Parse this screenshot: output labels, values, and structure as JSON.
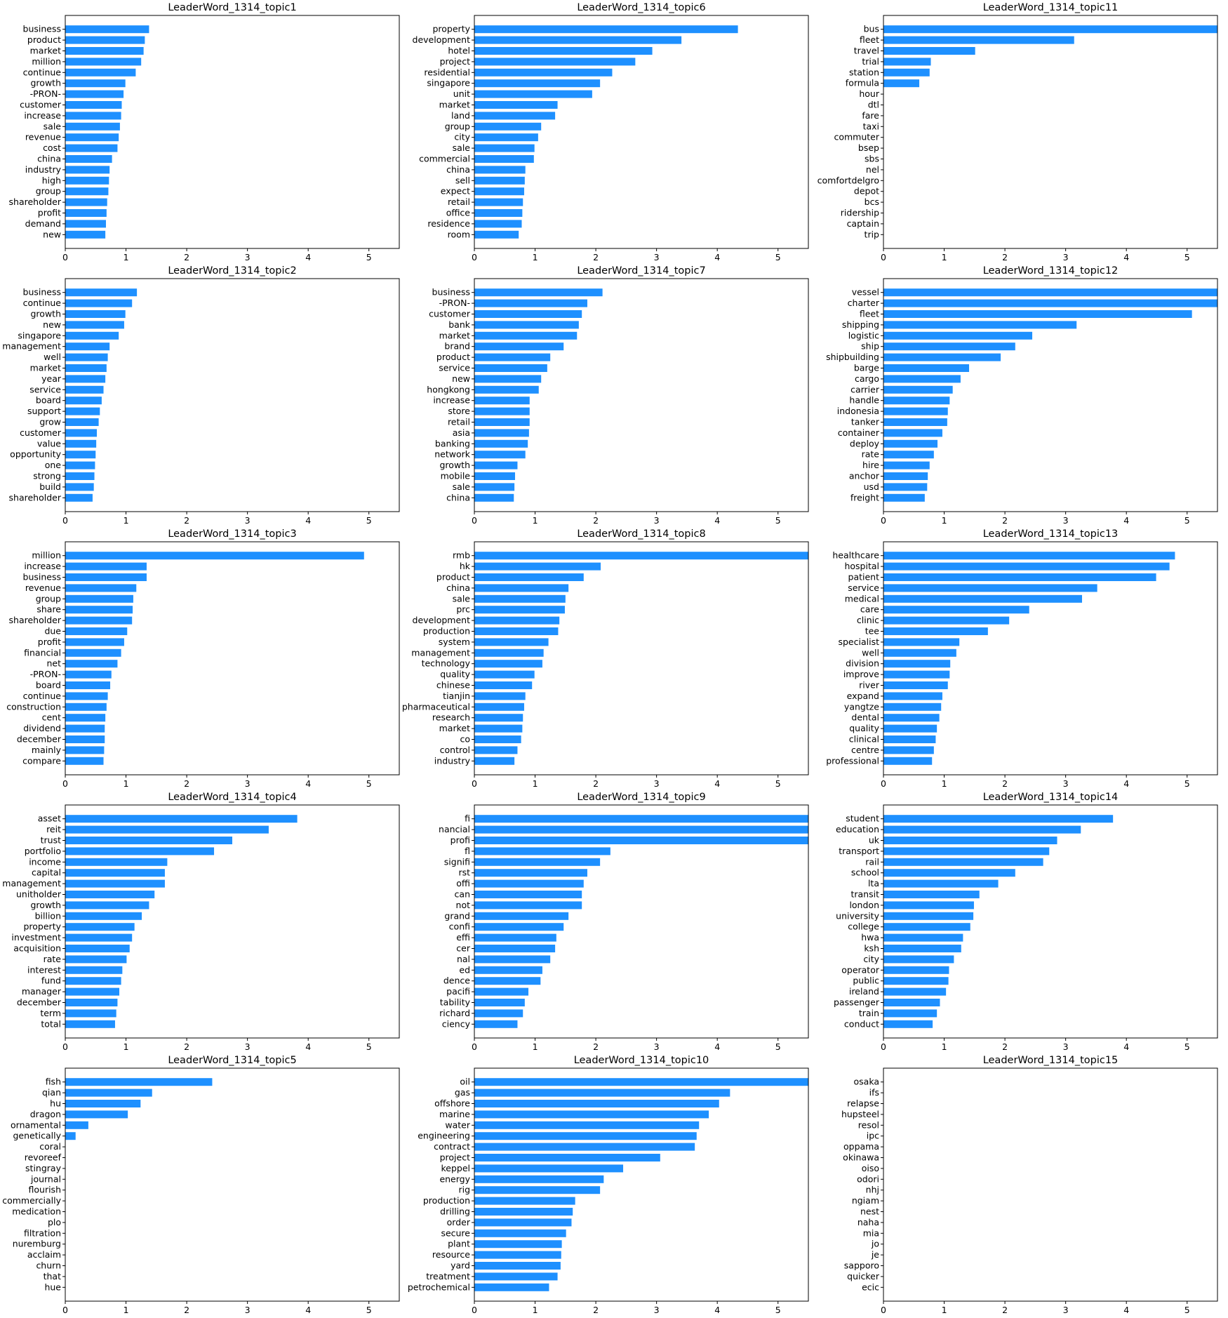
{
  "chart_data": [
    {
      "type": "bar",
      "orientation": "horizontal",
      "title": "LeaderWord_1314_topic1",
      "categories": [
        "business",
        "product",
        "market",
        "million",
        "continue",
        "growth",
        "-PRON-",
        "customer",
        "increase",
        "sale",
        "revenue",
        "cost",
        "china",
        "industry",
        "high",
        "group",
        "shareholder",
        "profit",
        "demand",
        "new"
      ],
      "values": [
        1.38,
        1.31,
        1.29,
        1.25,
        1.16,
        0.99,
        0.96,
        0.93,
        0.92,
        0.9,
        0.88,
        0.86,
        0.77,
        0.73,
        0.72,
        0.71,
        0.69,
        0.68,
        0.67,
        0.66
      ],
      "xticks": [
        0,
        1,
        2,
        3,
        4,
        5
      ],
      "xlim": [
        0,
        5.5
      ],
      "color": "#1e90ff"
    },
    {
      "type": "bar",
      "orientation": "horizontal",
      "title": "LeaderWord_1314_topic2",
      "categories": [
        "business",
        "continue",
        "growth",
        "new",
        "singapore",
        "management",
        "well",
        "market",
        "year",
        "service",
        "board",
        "support",
        "grow",
        "customer",
        "value",
        "opportunity",
        "one",
        "strong",
        "build",
        "shareholder"
      ],
      "values": [
        1.18,
        1.1,
        0.99,
        0.97,
        0.88,
        0.73,
        0.7,
        0.68,
        0.66,
        0.63,
        0.6,
        0.57,
        0.55,
        0.52,
        0.51,
        0.5,
        0.49,
        0.48,
        0.47,
        0.45
      ],
      "xticks": [
        0,
        1,
        2,
        3,
        4,
        5
      ],
      "xlim": [
        0,
        5.5
      ],
      "color": "#1e90ff"
    },
    {
      "type": "bar",
      "orientation": "horizontal",
      "title": "LeaderWord_1314_topic3",
      "categories": [
        "million",
        "increase",
        "business",
        "revenue",
        "group",
        "share",
        "shareholder",
        "due",
        "profit",
        "financial",
        "net",
        "-PRON-",
        "board",
        "continue",
        "construction",
        "cent",
        "dividend",
        "december",
        "mainly",
        "compare"
      ],
      "values": [
        4.92,
        1.34,
        1.34,
        1.17,
        1.12,
        1.11,
        1.1,
        1.02,
        0.97,
        0.92,
        0.86,
        0.76,
        0.74,
        0.7,
        0.68,
        0.66,
        0.65,
        0.65,
        0.64,
        0.63
      ],
      "xticks": [
        0,
        1,
        2,
        3,
        4,
        5
      ],
      "xlim": [
        0,
        5.5
      ],
      "color": "#1e90ff"
    },
    {
      "type": "bar",
      "orientation": "horizontal",
      "title": "LeaderWord_1314_topic4",
      "categories": [
        "asset",
        "reit",
        "trust",
        "portfolio",
        "income",
        "capital",
        "management",
        "unitholder",
        "growth",
        "billion",
        "property",
        "investment",
        "acquisition",
        "rate",
        "interest",
        "fund",
        "manager",
        "december",
        "term",
        "total"
      ],
      "values": [
        3.82,
        3.35,
        2.75,
        2.45,
        1.68,
        1.64,
        1.64,
        1.47,
        1.38,
        1.26,
        1.14,
        1.1,
        1.06,
        1.01,
        0.94,
        0.92,
        0.89,
        0.86,
        0.84,
        0.82
      ],
      "xticks": [
        0,
        1,
        2,
        3,
        4,
        5
      ],
      "xlim": [
        0,
        5.5
      ],
      "color": "#1e90ff"
    },
    {
      "type": "bar",
      "orientation": "horizontal",
      "title": "LeaderWord_1314_topic5",
      "categories": [
        "fish",
        "qian",
        "hu",
        "dragon",
        "ornamental",
        "genetically",
        "coral",
        "revoreef",
        "stingray",
        "journal",
        "flourish",
        "commercially",
        "medication",
        "plo",
        "filtration",
        "nuremburg",
        "acclaim",
        "churn",
        "that",
        "hue"
      ],
      "values": [
        2.42,
        1.43,
        1.24,
        1.03,
        0.38,
        0.17,
        0,
        0,
        0,
        0,
        0,
        0,
        0,
        0,
        0,
        0,
        0,
        0,
        0,
        0
      ],
      "xticks": [
        0,
        1,
        2,
        3,
        4,
        5
      ],
      "xlim": [
        0,
        5.5
      ],
      "color": "#1e90ff"
    },
    {
      "type": "bar",
      "orientation": "horizontal",
      "title": "LeaderWord_1314_topic6",
      "categories": [
        "property",
        "development",
        "hotel",
        "project",
        "residential",
        "singapore",
        "unit",
        "market",
        "land",
        "group",
        "city",
        "sale",
        "commercial",
        "china",
        "sell",
        "expect",
        "retail",
        "office",
        "residence",
        "room"
      ],
      "values": [
        4.34,
        3.41,
        2.93,
        2.65,
        2.27,
        2.07,
        1.94,
        1.37,
        1.33,
        1.1,
        1.05,
        0.99,
        0.98,
        0.84,
        0.83,
        0.82,
        0.8,
        0.79,
        0.78,
        0.73
      ],
      "xticks": [
        0,
        1,
        2,
        3,
        4,
        5
      ],
      "xlim": [
        0,
        5.5
      ],
      "color": "#1e90ff"
    },
    {
      "type": "bar",
      "orientation": "horizontal",
      "title": "LeaderWord_1314_topic7",
      "categories": [
        "business",
        "-PRON-",
        "customer",
        "bank",
        "market",
        "brand",
        "product",
        "service",
        "new",
        "hongkong",
        "increase",
        "store",
        "retail",
        "asia",
        "banking",
        "network",
        "growth",
        "mobile",
        "sale",
        "china"
      ],
      "values": [
        2.11,
        1.86,
        1.77,
        1.72,
        1.69,
        1.47,
        1.25,
        1.2,
        1.1,
        1.06,
        0.91,
        0.91,
        0.91,
        0.9,
        0.88,
        0.84,
        0.71,
        0.67,
        0.66,
        0.65
      ],
      "xticks": [
        0,
        1,
        2,
        3,
        4,
        5
      ],
      "xlim": [
        0,
        5.5
      ],
      "color": "#1e90ff"
    },
    {
      "type": "bar",
      "orientation": "horizontal",
      "title": "LeaderWord_1314_topic8",
      "categories": [
        "rmb",
        "hk",
        "product",
        "china",
        "sale",
        "prc",
        "development",
        "production",
        "system",
        "management",
        "technology",
        "quality",
        "chinese",
        "tianjin",
        "pharmaceutical",
        "research",
        "market",
        "co",
        "control",
        "industry"
      ],
      "values": [
        5.6,
        2.08,
        1.8,
        1.55,
        1.5,
        1.49,
        1.4,
        1.38,
        1.22,
        1.14,
        1.12,
        0.99,
        0.95,
        0.84,
        0.82,
        0.8,
        0.79,
        0.77,
        0.71,
        0.66
      ],
      "xticks": [
        0,
        1,
        2,
        3,
        4,
        5
      ],
      "xlim": [
        0,
        5.5
      ],
      "color": "#1e90ff"
    },
    {
      "type": "bar",
      "orientation": "horizontal",
      "title": "LeaderWord_1314_topic9",
      "categories": [
        "fi",
        "nancial",
        "profi",
        "fl",
        "signifi",
        "rst",
        "offi",
        "can",
        "not",
        "grand",
        "confi",
        "effi",
        "cer",
        "nal",
        "ed",
        "dence",
        "pacifi",
        "tability",
        "richard",
        "ciency"
      ],
      "values": [
        5.6,
        5.6,
        5.6,
        2.24,
        2.07,
        1.86,
        1.8,
        1.77,
        1.77,
        1.55,
        1.47,
        1.35,
        1.33,
        1.25,
        1.12,
        1.09,
        0.89,
        0.83,
        0.8,
        0.71
      ],
      "xticks": [
        0,
        1,
        2,
        3,
        4,
        5
      ],
      "xlim": [
        0,
        5.5
      ],
      "color": "#1e90ff"
    },
    {
      "type": "bar",
      "orientation": "horizontal",
      "title": "LeaderWord_1314_topic10",
      "categories": [
        "oil",
        "gas",
        "offshore",
        "marine",
        "water",
        "engineering",
        "contract",
        "project",
        "keppel",
        "energy",
        "rig",
        "production",
        "drilling",
        "order",
        "secure",
        "plant",
        "resource",
        "yard",
        "treatment",
        "petrochemical"
      ],
      "values": [
        5.6,
        4.21,
        4.03,
        3.86,
        3.7,
        3.66,
        3.63,
        3.06,
        2.45,
        2.13,
        2.07,
        1.66,
        1.62,
        1.6,
        1.51,
        1.44,
        1.43,
        1.42,
        1.37,
        1.23
      ],
      "xticks": [
        0,
        1,
        2,
        3,
        4,
        5
      ],
      "xlim": [
        0,
        5.5
      ],
      "color": "#1e90ff"
    },
    {
      "type": "bar",
      "orientation": "horizontal",
      "title": "LeaderWord_1314_topic11",
      "categories": [
        "bus",
        "fleet",
        "travel",
        "trial",
        "station",
        "formula",
        "hour",
        "dtl",
        "fare",
        "taxi",
        "commuter",
        "bsep",
        "sbs",
        "nel",
        "comfortdelgro",
        "depot",
        "bcs",
        "ridership",
        "captain",
        "trip"
      ],
      "values": [
        5.6,
        3.14,
        1.51,
        0.78,
        0.76,
        0.59,
        0,
        0,
        0,
        0,
        0,
        0,
        0,
        0,
        0,
        0,
        0,
        0,
        0,
        0
      ],
      "xticks": [
        0,
        1,
        2,
        3,
        4,
        5
      ],
      "xlim": [
        0,
        5.5
      ],
      "color": "#1e90ff"
    },
    {
      "type": "bar",
      "orientation": "horizontal",
      "title": "LeaderWord_1314_topic12",
      "categories": [
        "vessel",
        "charter",
        "fleet",
        "shipping",
        "logistic",
        "ship",
        "shipbuilding",
        "barge",
        "cargo",
        "carrier",
        "handle",
        "indonesia",
        "tanker",
        "container",
        "deploy",
        "rate",
        "hire",
        "anchor",
        "usd",
        "freight"
      ],
      "values": [
        5.6,
        5.6,
        5.08,
        3.18,
        2.45,
        2.17,
        1.93,
        1.41,
        1.27,
        1.14,
        1.09,
        1.06,
        1.05,
        0.97,
        0.89,
        0.83,
        0.76,
        0.73,
        0.72,
        0.68
      ],
      "xticks": [
        0,
        1,
        2,
        3,
        4,
        5
      ],
      "xlim": [
        0,
        5.5
      ],
      "color": "#1e90ff"
    },
    {
      "type": "bar",
      "orientation": "horizontal",
      "title": "LeaderWord_1314_topic13",
      "categories": [
        "healthcare",
        "hospital",
        "patient",
        "service",
        "medical",
        "care",
        "clinic",
        "tee",
        "specialist",
        "well",
        "division",
        "improve",
        "river",
        "expand",
        "yangtze",
        "dental",
        "quality",
        "clinical",
        "centre",
        "professional"
      ],
      "values": [
        4.8,
        4.71,
        4.49,
        3.52,
        3.27,
        2.4,
        2.07,
        1.72,
        1.25,
        1.2,
        1.1,
        1.09,
        1.06,
        0.97,
        0.95,
        0.92,
        0.88,
        0.86,
        0.83,
        0.8
      ],
      "xticks": [
        0,
        1,
        2,
        3,
        4,
        5
      ],
      "xlim": [
        0,
        5.5
      ],
      "color": "#1e90ff"
    },
    {
      "type": "bar",
      "orientation": "horizontal",
      "title": "LeaderWord_1314_topic14",
      "categories": [
        "student",
        "education",
        "uk",
        "transport",
        "rail",
        "school",
        "lta",
        "transit",
        "london",
        "university",
        "college",
        "hwa",
        "ksh",
        "city",
        "operator",
        "public",
        "ireland",
        "passenger",
        "train",
        "conduct"
      ],
      "values": [
        3.78,
        3.25,
        2.86,
        2.73,
        2.63,
        2.17,
        1.89,
        1.58,
        1.49,
        1.48,
        1.43,
        1.31,
        1.28,
        1.16,
        1.08,
        1.07,
        1.03,
        0.93,
        0.88,
        0.81
      ],
      "xticks": [
        0,
        1,
        2,
        3,
        4,
        5
      ],
      "xlim": [
        0,
        5.5
      ],
      "color": "#1e90ff"
    },
    {
      "type": "bar",
      "orientation": "horizontal",
      "title": "LeaderWord_1314_topic15",
      "categories": [
        "osaka",
        "ifs",
        "relapse",
        "hupsteel",
        "resol",
        "ipc",
        "oppama",
        "okinawa",
        "oiso",
        "odori",
        "nhj",
        "ngiam",
        "nest",
        "naha",
        "mia",
        "jo",
        "je",
        "sapporo",
        "quicker",
        "ecic"
      ],
      "values": [
        0,
        0,
        0,
        0,
        0,
        0,
        0,
        0,
        0,
        0,
        0,
        0,
        0,
        0,
        0,
        0,
        0,
        0,
        0,
        0
      ],
      "xticks": [
        0,
        1,
        2,
        3,
        4,
        5
      ],
      "xlim": [
        0,
        5.5
      ],
      "color": "#1e90ff"
    }
  ]
}
